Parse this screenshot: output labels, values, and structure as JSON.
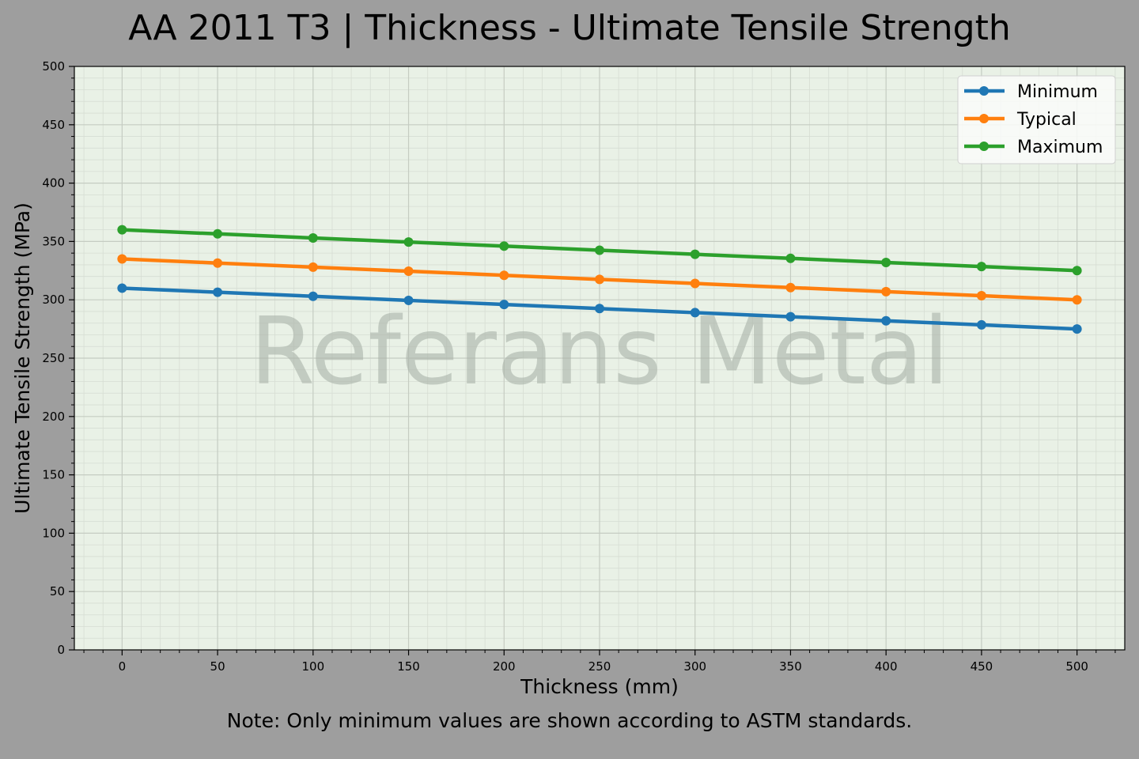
{
  "title": "AA 2011 T3 | Thickness - Ultimate Tensile Strength",
  "note": "Note: Only minimum values are shown according to ASTM standards.",
  "watermark": "Referans Metal",
  "colors": {
    "background": "#9e9e9e",
    "plot_background": "#e9f1e6",
    "Minimum": "#1f77b4",
    "Typical": "#ff7f0e",
    "Maximum": "#2ca02c"
  },
  "chart_data": {
    "type": "line",
    "title": "AA 2011 T3 | Thickness - Ultimate Tensile Strength",
    "xlabel": "Thickness (mm)",
    "ylabel": "Ultimate Tensile Strength (MPa)",
    "x": [
      0,
      50,
      100,
      150,
      200,
      250,
      300,
      350,
      400,
      450,
      500
    ],
    "series": [
      {
        "name": "Minimum",
        "values": [
          310,
          306.5,
          303,
          299.5,
          296,
          292.5,
          289,
          285.5,
          282,
          278.5,
          275
        ]
      },
      {
        "name": "Typical",
        "values": [
          335,
          331.5,
          328,
          324.5,
          321,
          317.5,
          314,
          310.5,
          307,
          303.5,
          300
        ]
      },
      {
        "name": "Maximum",
        "values": [
          360,
          356.5,
          353,
          349.5,
          346,
          342.5,
          339,
          335.5,
          332,
          328.5,
          325
        ]
      }
    ],
    "xticks": [
      0,
      50,
      100,
      150,
      200,
      250,
      300,
      350,
      400,
      450,
      500
    ],
    "yticks": [
      0,
      50,
      100,
      150,
      200,
      250,
      300,
      350,
      400,
      450,
      500
    ],
    "xlim": [
      -25,
      525
    ],
    "ylim": [
      0,
      500
    ],
    "grid": true,
    "legend_position": "upper right",
    "annotations": [
      "Referans Metal (watermark)",
      "Note: Only minimum values are shown according to ASTM standards."
    ]
  }
}
